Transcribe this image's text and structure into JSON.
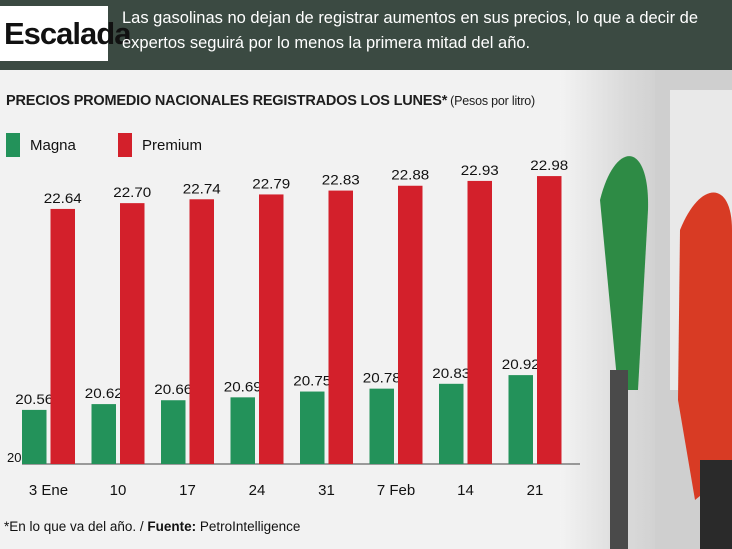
{
  "header": {
    "tag": "Escalada",
    "text": "Las gasolinas no dejan de registrar aumentos en sus precios, lo que a decir de expertos seguirá por lo menos la primera mitad del año."
  },
  "chart_data": {
    "type": "bar",
    "title": "PRECIOS PROMEDIO NACIONALES REGISTRADOS LOS LUNES*",
    "unit": "(Pesos por litro)",
    "categories": [
      "3 Ene",
      "10",
      "17",
      "24",
      "31",
      "7 Feb",
      "14",
      "21"
    ],
    "series": [
      {
        "name": "Magna",
        "color": "#23925a",
        "values": [
          20.56,
          20.62,
          20.66,
          20.69,
          20.75,
          20.78,
          20.83,
          20.92
        ]
      },
      {
        "name": "Premium",
        "color": "#d3202b",
        "values": [
          22.64,
          22.7,
          22.74,
          22.79,
          22.83,
          22.88,
          22.93,
          22.98
        ]
      }
    ],
    "value_labels": {
      "Magna": [
        "20.56",
        "20.62",
        "20.66",
        "20.69",
        "20.75",
        "20.78",
        "20.83",
        "20.92"
      ],
      "Premium": [
        "22.64",
        "22.70",
        "22.74",
        "22.79",
        "22.83",
        "22.88",
        "22.93",
        "22.98"
      ]
    },
    "y_base_label": "20",
    "ylim": [
      20,
      23.25
    ],
    "legend_position": "top-left",
    "grid": false
  },
  "footer": {
    "note": "*En lo que va del año. / ",
    "source_label": "Fuente:",
    "source": " PetroIntelligence"
  },
  "colors": {
    "header_bg": "#3b4a42",
    "magna": "#23925a",
    "premium": "#d3202b"
  }
}
